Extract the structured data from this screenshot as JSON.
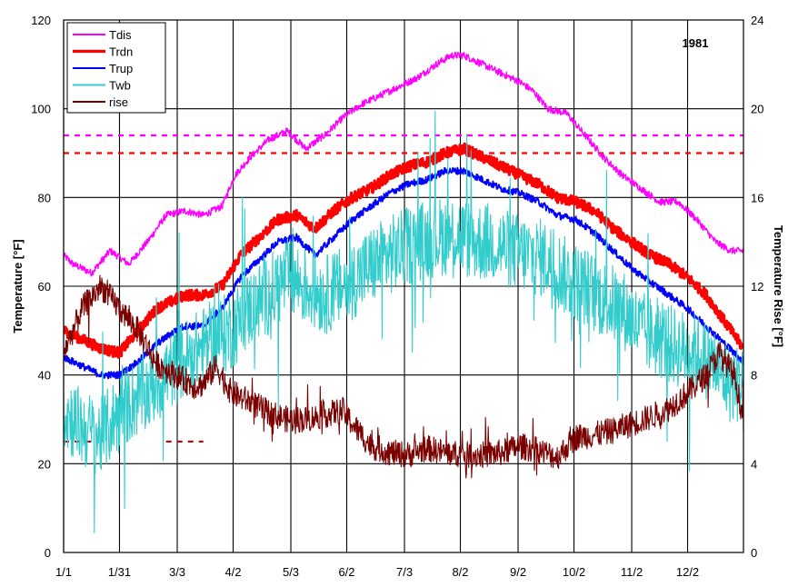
{
  "chart_data": {
    "type": "line",
    "title": "",
    "year_label": "1981",
    "ylabel_left": "Temperature [°F]",
    "ylabel_right": "Temperature Rise [°F]",
    "ylim_left": [
      0,
      120
    ],
    "ylim_right": [
      0,
      24
    ],
    "y_ticks_left": [
      "0",
      "20",
      "40",
      "60",
      "80",
      "100",
      "120"
    ],
    "y_ticks_right": [
      "0",
      "4",
      "8",
      "12",
      "16",
      "20",
      "24"
    ],
    "x_ticks": [
      "1/1",
      "1/31",
      "3/3",
      "4/2",
      "5/3",
      "6/2",
      "7/3",
      "8/2",
      "9/2",
      "10/2",
      "11/2",
      "12/2"
    ],
    "x_tick_days": [
      0,
      30,
      61,
      91,
      122,
      152,
      183,
      213,
      244,
      274,
      305,
      335
    ],
    "x_domain_days": [
      0,
      365
    ],
    "grid": true,
    "legend_position": "top-left",
    "reference_lines": [
      {
        "y": 94,
        "color": "#ff00ff",
        "style": "dashed"
      },
      {
        "y": 90,
        "color": "#ff0000",
        "style": "dashed"
      },
      {
        "y": 25,
        "color": "#cc0000",
        "style": "dashed",
        "x_range_days": [
          0,
          15
        ]
      },
      {
        "y": 25,
        "color": "#cc0000",
        "style": "dashed",
        "x_range_days": [
          55,
          75
        ]
      }
    ],
    "series": [
      {
        "name": "Tdis",
        "color": "#ff00ff",
        "width": 1.4,
        "axis": "left",
        "noise": 0.8,
        "spikes": 0,
        "x": [
          0,
          5,
          15,
          25,
          35,
          45,
          55,
          65,
          75,
          85,
          92,
          100,
          110,
          120,
          130,
          140,
          150,
          160,
          170,
          180,
          190,
          200,
          208,
          215,
          225,
          235,
          245,
          252,
          260,
          270,
          280,
          290,
          300,
          310,
          320,
          330,
          340,
          350,
          358,
          365
        ],
        "y": [
          67,
          65,
          63,
          68,
          65,
          70,
          76,
          77,
          76,
          78,
          85,
          89,
          93,
          95,
          91,
          94,
          98,
          101,
          103,
          105,
          107,
          110,
          112,
          112,
          110,
          108,
          106,
          104,
          100,
          99,
          94,
          89,
          85,
          82,
          79,
          79,
          75,
          70,
          68,
          68
        ]
      },
      {
        "name": "Trdn",
        "color": "#ff0000",
        "width": 3.2,
        "axis": "left",
        "noise": 1.2,
        "spikes": 0,
        "x": [
          0,
          10,
          20,
          30,
          40,
          50,
          60,
          65,
          75,
          85,
          95,
          105,
          115,
          125,
          135,
          145,
          155,
          165,
          175,
          185,
          195,
          205,
          215,
          225,
          235,
          245,
          255,
          265,
          275,
          285,
          295,
          305,
          315,
          325,
          335,
          345,
          355,
          365
        ],
        "y": [
          50,
          48,
          46,
          45,
          50,
          55,
          57,
          58,
          58,
          60,
          67,
          71,
          75,
          76,
          73,
          77,
          80,
          82,
          85,
          87,
          88,
          90,
          91,
          89,
          87,
          85,
          83,
          80,
          79,
          77,
          73,
          70,
          67,
          65,
          62,
          58,
          52,
          46
        ]
      },
      {
        "name": "Trup",
        "color": "#0000ff",
        "width": 1.8,
        "axis": "left",
        "noise": 0.8,
        "spikes": 0,
        "x": [
          0,
          10,
          20,
          30,
          40,
          50,
          60,
          65,
          75,
          85,
          95,
          105,
          115,
          125,
          135,
          145,
          155,
          165,
          175,
          185,
          195,
          205,
          215,
          225,
          235,
          245,
          255,
          265,
          275,
          285,
          295,
          305,
          315,
          325,
          335,
          345,
          355,
          365
        ],
        "y": [
          44,
          42,
          40,
          40,
          43,
          47,
          50,
          51,
          51,
          55,
          62,
          66,
          70,
          71,
          67,
          71,
          75,
          78,
          81,
          83,
          84,
          86,
          86,
          84,
          82,
          81,
          79,
          76,
          75,
          72,
          68,
          64,
          61,
          58,
          55,
          51,
          47,
          43
        ]
      },
      {
        "name": "Twb",
        "color": "#33cccc",
        "width": 1.1,
        "axis": "left",
        "noise": 9,
        "spikes": 0.04,
        "x": [
          0,
          10,
          20,
          30,
          40,
          50,
          60,
          70,
          80,
          90,
          100,
          110,
          120,
          130,
          140,
          150,
          160,
          170,
          180,
          190,
          200,
          210,
          220,
          230,
          240,
          250,
          260,
          270,
          280,
          290,
          300,
          310,
          320,
          330,
          340,
          350,
          358,
          365
        ],
        "y": [
          32,
          28,
          26,
          32,
          35,
          38,
          42,
          45,
          48,
          50,
          55,
          58,
          62,
          60,
          58,
          60,
          63,
          66,
          68,
          70,
          71,
          72,
          70,
          70,
          68,
          67,
          66,
          62,
          60,
          57,
          55,
          50,
          48,
          46,
          45,
          42,
          38,
          38
        ]
      },
      {
        "name": "rise",
        "color": "#7a0000",
        "width": 1.1,
        "axis": "right",
        "noise": 0.6,
        "spikes": 0.03,
        "x": [
          0,
          10,
          20,
          30,
          40,
          50,
          60,
          70,
          75,
          82,
          90,
          100,
          110,
          120,
          130,
          140,
          150,
          155,
          165,
          175,
          185,
          195,
          205,
          215,
          225,
          235,
          245,
          255,
          265,
          275,
          285,
          295,
          305,
          315,
          325,
          335,
          345,
          352,
          360,
          365
        ],
        "y": [
          9,
          11,
          12,
          11,
          10,
          8.5,
          8,
          7.5,
          7.6,
          8.4,
          7.2,
          6.8,
          6.3,
          6,
          6,
          6.2,
          6.4,
          5.8,
          4.8,
          4.5,
          4.4,
          4.7,
          4.5,
          4.4,
          4.4,
          4.5,
          4.8,
          4.6,
          4.3,
          5.2,
          5.3,
          5.5,
          5.8,
          6.1,
          6.5,
          7.2,
          8,
          9,
          8,
          6
        ]
      }
    ]
  }
}
